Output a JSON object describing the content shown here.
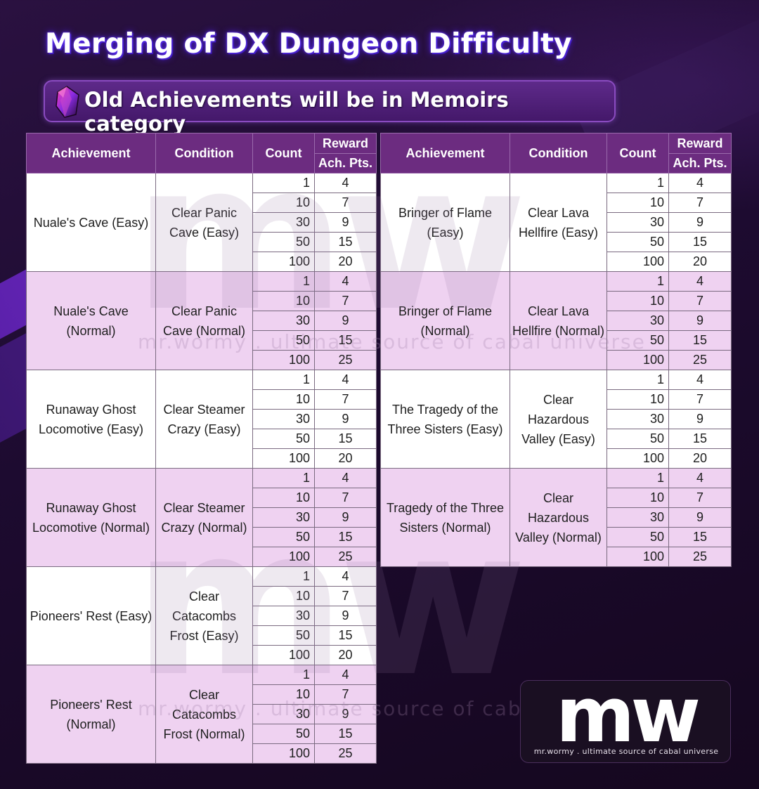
{
  "title": "Merging of DX Dungeon Difficulty",
  "banner": {
    "text": "Old Achievements will be in Memoirs category",
    "icon": "crystal-gem-icon"
  },
  "headers": {
    "achievement": "Achievement",
    "condition": "Condition",
    "count": "Count",
    "reward": "Reward",
    "ach_pts": "Ach. Pts."
  },
  "colors": {
    "header": "#6c2c80",
    "row_alt": "#efd2f1",
    "row": "#ffffff"
  },
  "left_table": [
    {
      "achievement": "Nuale's Cave (Easy)",
      "condition": "Clear Panic Cave (Easy)",
      "rows": [
        {
          "count": "1",
          "pts": "4"
        },
        {
          "count": "10",
          "pts": "7"
        },
        {
          "count": "30",
          "pts": "9"
        },
        {
          "count": "50",
          "pts": "15"
        },
        {
          "count": "100",
          "pts": "20"
        }
      ]
    },
    {
      "achievement": "Nuale's Cave (Normal)",
      "condition": "Clear Panic Cave (Normal)",
      "rows": [
        {
          "count": "1",
          "pts": "4"
        },
        {
          "count": "10",
          "pts": "7"
        },
        {
          "count": "30",
          "pts": "9"
        },
        {
          "count": "50",
          "pts": "15"
        },
        {
          "count": "100",
          "pts": "25"
        }
      ]
    },
    {
      "achievement": "Runaway Ghost Locomotive (Easy)",
      "condition": "Clear Steamer Crazy (Easy)",
      "rows": [
        {
          "count": "1",
          "pts": "4"
        },
        {
          "count": "10",
          "pts": "7"
        },
        {
          "count": "30",
          "pts": "9"
        },
        {
          "count": "50",
          "pts": "15"
        },
        {
          "count": "100",
          "pts": "20"
        }
      ]
    },
    {
      "achievement": "Runaway Ghost Locomotive (Normal)",
      "condition": "Clear Steamer Crazy (Normal)",
      "rows": [
        {
          "count": "1",
          "pts": "4"
        },
        {
          "count": "10",
          "pts": "7"
        },
        {
          "count": "30",
          "pts": "9"
        },
        {
          "count": "50",
          "pts": "15"
        },
        {
          "count": "100",
          "pts": "25"
        }
      ]
    },
    {
      "achievement": "Pioneers' Rest (Easy)",
      "condition": "Clear Catacombs Frost (Easy)",
      "rows": [
        {
          "count": "1",
          "pts": "4"
        },
        {
          "count": "10",
          "pts": "7"
        },
        {
          "count": "30",
          "pts": "9"
        },
        {
          "count": "50",
          "pts": "15"
        },
        {
          "count": "100",
          "pts": "20"
        }
      ]
    },
    {
      "achievement": "Pioneers' Rest (Normal)",
      "condition": "Clear Catacombs Frost (Normal)",
      "rows": [
        {
          "count": "1",
          "pts": "4"
        },
        {
          "count": "10",
          "pts": "7"
        },
        {
          "count": "30",
          "pts": "9"
        },
        {
          "count": "50",
          "pts": "15"
        },
        {
          "count": "100",
          "pts": "25"
        }
      ]
    }
  ],
  "right_table": [
    {
      "achievement": "Bringer of Flame (Easy)",
      "condition": "Clear Lava Hellfire (Easy)",
      "rows": [
        {
          "count": "1",
          "pts": "4"
        },
        {
          "count": "10",
          "pts": "7"
        },
        {
          "count": "30",
          "pts": "9"
        },
        {
          "count": "50",
          "pts": "15"
        },
        {
          "count": "100",
          "pts": "20"
        }
      ]
    },
    {
      "achievement": "Bringer of Flame (Normal)",
      "condition": "Clear Lava Hellfire (Normal)",
      "rows": [
        {
          "count": "1",
          "pts": "4"
        },
        {
          "count": "10",
          "pts": "7"
        },
        {
          "count": "30",
          "pts": "9"
        },
        {
          "count": "50",
          "pts": "15"
        },
        {
          "count": "100",
          "pts": "25"
        }
      ]
    },
    {
      "achievement": "The Tragedy of the Three Sisters (Easy)",
      "condition": "Clear Hazardous Valley (Easy)",
      "rows": [
        {
          "count": "1",
          "pts": "4"
        },
        {
          "count": "10",
          "pts": "7"
        },
        {
          "count": "30",
          "pts": "9"
        },
        {
          "count": "50",
          "pts": "15"
        },
        {
          "count": "100",
          "pts": "20"
        }
      ]
    },
    {
      "achievement": "Tragedy of the Three Sisters (Normal)",
      "condition": "Clear Hazardous Valley (Normal)",
      "rows": [
        {
          "count": "1",
          "pts": "4"
        },
        {
          "count": "10",
          "pts": "7"
        },
        {
          "count": "30",
          "pts": "9"
        },
        {
          "count": "50",
          "pts": "15"
        },
        {
          "count": "100",
          "pts": "25"
        }
      ]
    }
  ],
  "watermark": {
    "letters": "mw",
    "tagline": "mr.wormy . ultimate source of cabal universe"
  },
  "logo": {
    "letters": "mw",
    "tagline": "mr.wormy . ultimate source of cabal universe"
  }
}
